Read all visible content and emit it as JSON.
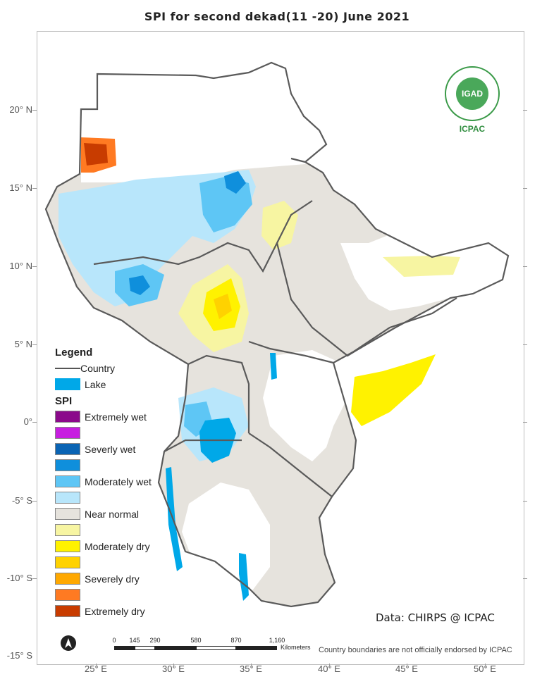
{
  "title": "SPI  for  second dekad(11 -20) June  2021",
  "lat_labels": [
    "20° N",
    "15° N",
    "10° N",
    "5° N",
    "0°",
    "-5° S",
    "-10° S",
    "-15° S"
  ],
  "lon_labels": [
    "25° E",
    "30° E",
    "35° E",
    "40° E",
    "45° E",
    "50° E"
  ],
  "legend": {
    "heading": "Legend",
    "country_label": "Country",
    "lake_label": "Lake",
    "spi_heading": "SPI",
    "classes": [
      {
        "label": "Extremely wet",
        "color": "#8b0a8b"
      },
      {
        "label": "",
        "color": "#c71ee0"
      },
      {
        "label": "Severly wet",
        "color": "#0a64b4"
      },
      {
        "label": "",
        "color": "#0f8fdc"
      },
      {
        "label": "Moderately wet",
        "color": "#5ec6f5"
      },
      {
        "label": "",
        "color": "#b8e6fb"
      },
      {
        "label": "Near normal",
        "color": "#e6e3dd"
      },
      {
        "label": "",
        "color": "#f7f5a2"
      },
      {
        "label": "Moderately dry",
        "color": "#fff200"
      },
      {
        "label": "",
        "color": "#ffd200"
      },
      {
        "label": "Severely dry",
        "color": "#ffa800"
      },
      {
        "label": "",
        "color": "#ff7a22"
      },
      {
        "label": "Extremely dry",
        "color": "#c83c00"
      }
    ]
  },
  "credit": "Data: CHIRPS @ ICPAC",
  "disclaimer": "Country boundaries are not officially endorsed by ICPAC",
  "logo": {
    "inner": "IGAD",
    "acronym": "ICPAC"
  },
  "scale": {
    "ticks": [
      "0",
      "145",
      "290",
      "580",
      "870",
      "1,160"
    ],
    "unit": "Kilometers"
  }
}
